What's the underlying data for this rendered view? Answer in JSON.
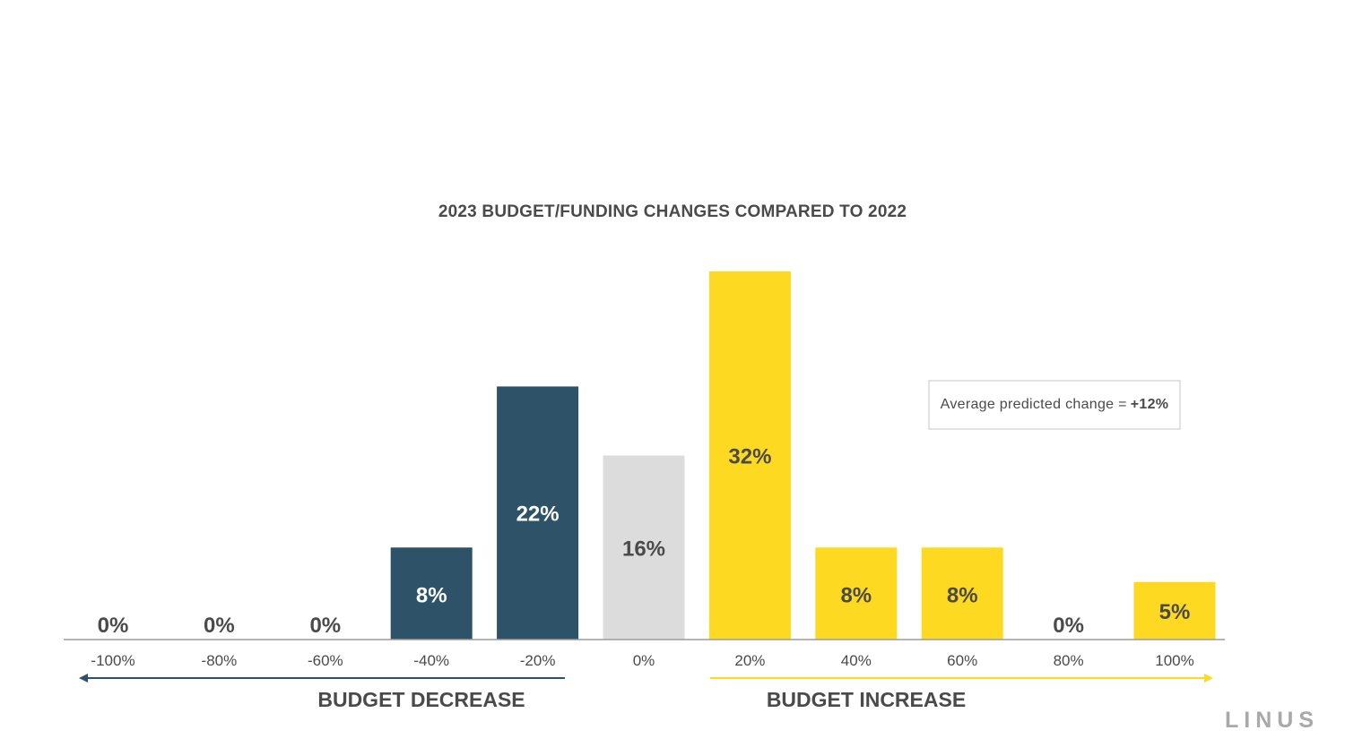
{
  "chart_data": {
    "type": "bar",
    "title": "2023 BUDGET/FUNDING CHANGES COMPARED TO 2022",
    "xlabel": "",
    "ylabel": "",
    "categories": [
      "-100%",
      "-80%",
      "-60%",
      "-40%",
      "-20%",
      "0%",
      "20%",
      "40%",
      "60%",
      "80%",
      "100%"
    ],
    "values": [
      0,
      0,
      0,
      8,
      22,
      16,
      32,
      8,
      8,
      0,
      5
    ],
    "value_labels": [
      "0%",
      "0%",
      "0%",
      "8%",
      "22%",
      "16%",
      "32%",
      "8%",
      "8%",
      "0%",
      "5%"
    ],
    "ylim": [
      0,
      32
    ],
    "grid": false,
    "bar_groups": [
      "decrease",
      "decrease",
      "decrease",
      "decrease",
      "decrease",
      "neutral",
      "increase",
      "increase",
      "increase",
      "increase",
      "increase"
    ],
    "colors": {
      "decrease": "#2e5268",
      "neutral": "#dcdcdd",
      "increase": "#fdd921",
      "label_dark": "#4a4a4a",
      "label_light": "#ffffff",
      "axis": "#9b9b9b"
    },
    "decrease_label": "BUDGET DECREASE",
    "increase_label": "BUDGET INCREASE",
    "annotation": {
      "prefix": "Average predicted change =",
      "value": "+12%"
    }
  },
  "brand": {
    "logo_text": "LINUS"
  }
}
